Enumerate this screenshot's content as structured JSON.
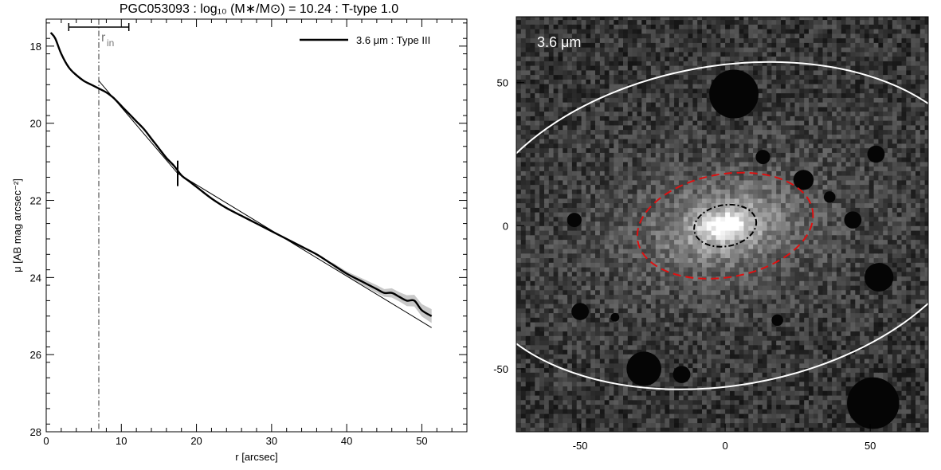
{
  "figure": {
    "title": "PGC053093 : log₁₀ (M∗/M⊙) = 10.24 : T-type 1.0"
  },
  "chart_data": [
    {
      "type": "line",
      "title": "PGC053093 : log₁₀ (M∗/M⊙) = 10.24 : T-type 1.0",
      "xlabel": "r [arcsec]",
      "ylabel": "μ [AB mag arcsec⁻²]",
      "xlim": [
        0,
        56
      ],
      "ylim": [
        28,
        17.3
      ],
      "y_inverted": true,
      "xticks": [
        0,
        10,
        20,
        30,
        40,
        50
      ],
      "yticks": [
        18,
        20,
        22,
        24,
        26,
        28
      ],
      "legend": {
        "position": "top-right",
        "entries": [
          "3.6 μm : Type III"
        ]
      },
      "series": [
        {
          "name": "3.6 μm : Type III",
          "style": "thick",
          "x": [
            0.6,
            1.2,
            2,
            3,
            4,
            5,
            6,
            7,
            8,
            9,
            10,
            11,
            12,
            13,
            14,
            15,
            16,
            17,
            18,
            19,
            20,
            22,
            24,
            26,
            28,
            30,
            32,
            34,
            36,
            38,
            40,
            42,
            44,
            45,
            46,
            47,
            48,
            49,
            50,
            51.3
          ],
          "y": [
            17.65,
            17.8,
            18.2,
            18.55,
            18.75,
            18.9,
            19.0,
            19.1,
            19.2,
            19.35,
            19.55,
            19.75,
            19.95,
            20.15,
            20.4,
            20.65,
            20.9,
            21.1,
            21.35,
            21.5,
            21.65,
            21.95,
            22.2,
            22.4,
            22.6,
            22.8,
            23.0,
            23.2,
            23.4,
            23.65,
            23.9,
            24.1,
            24.3,
            24.4,
            24.4,
            24.5,
            24.6,
            24.6,
            24.85,
            25.0
          ],
          "uncertainty_band": {
            "start_x": 38,
            "half_width": [
              0.05,
              0.06,
              0.08,
              0.1,
              0.1,
              0.12,
              0.12,
              0.14,
              0.15,
              0.16,
              0.18
            ]
          }
        },
        {
          "name": "inner exponential fit",
          "style": "thin",
          "x": [
            7,
            17.5
          ],
          "y": [
            18.9,
            21.3
          ]
        },
        {
          "name": "outer exponential fit",
          "style": "thin",
          "x": [
            17.5,
            51.3
          ],
          "y": [
            21.3,
            25.3
          ]
        }
      ],
      "annotations": {
        "r_in_label": "r",
        "r_in_subscript": "in",
        "r_in_x": 7,
        "r_in_range": [
          3,
          11
        ],
        "break_marker_x": 17.5,
        "break_marker_y": 21.3
      }
    },
    {
      "type": "heatmap",
      "band_label": "3.6 μm",
      "xlim": [
        -72,
        70
      ],
      "ylim": [
        -72,
        73
      ],
      "xticks": [
        -50,
        0,
        50
      ],
      "yticks": [
        -50,
        0,
        50
      ],
      "colormap": "grayscale",
      "background_color": "#3a3a3a",
      "galaxy": {
        "center": [
          0,
          0
        ],
        "position_angle_deg": 10,
        "axis_ratio": 0.58
      },
      "ellipses": [
        {
          "name": "outer",
          "color": "#ffffff",
          "style": "solid",
          "semi_major": 100,
          "semi_minor": 62
        },
        {
          "name": "middle",
          "color": "#dd1111",
          "style": "dashed",
          "semi_major": 34,
          "semi_minor": 20
        },
        {
          "name": "inner",
          "color": "#000000",
          "style": "dash-dot",
          "semi_major": 12,
          "semi_minor": 8
        }
      ],
      "masked_regions": [
        {
          "x": 3,
          "y": 46,
          "r": 8.5
        },
        {
          "x": 13,
          "y": 24,
          "r": 2.5
        },
        {
          "x": 27,
          "y": 16,
          "r": 3.5
        },
        {
          "x": 36,
          "y": 10,
          "r": 2
        },
        {
          "x": 44,
          "y": 2,
          "r": 3
        },
        {
          "x": 52,
          "y": 25,
          "r": 3
        },
        {
          "x": 53,
          "y": -18,
          "r": 5
        },
        {
          "x": 51,
          "y": -62,
          "r": 9
        },
        {
          "x": -28,
          "y": -50,
          "r": 6
        },
        {
          "x": -15,
          "y": -52,
          "r": 3
        },
        {
          "x": -50,
          "y": -30,
          "r": 3
        },
        {
          "x": -52,
          "y": 2,
          "r": 2.5
        },
        {
          "x": -38,
          "y": -32,
          "r": 1.5
        },
        {
          "x": 18,
          "y": -33,
          "r": 2
        }
      ]
    }
  ]
}
